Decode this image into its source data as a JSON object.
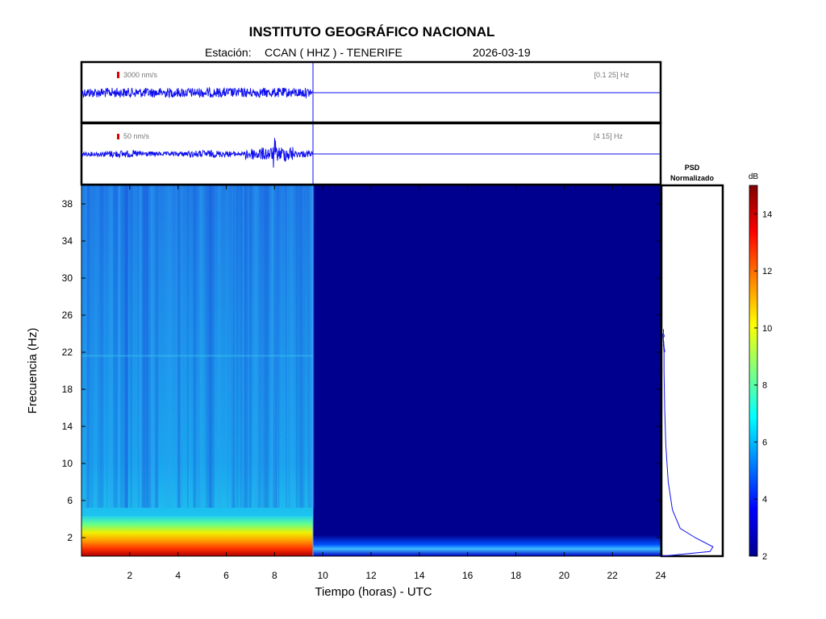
{
  "header": {
    "title": "INSTITUTO GEOGRÁFICO NACIONAL",
    "station_label": "Estación:",
    "station_value": "CCAN ( HHZ ) - TENERIFE",
    "date": "2026-03-19"
  },
  "colors": {
    "trace": "#1010ee",
    "scale_bar": "#dd0000",
    "spectrogram_background": "#00008f",
    "frame": "#000000"
  },
  "chart_data": [
    {
      "type": "line",
      "panel": "waveform-broadband",
      "scale_label": "3000 nm/s",
      "band_label": "[0.1 25] Hz",
      "x_range": [
        0,
        24
      ],
      "data_end_hour": 9.6,
      "description_flat_after_data": true
    },
    {
      "type": "line",
      "panel": "waveform-highpass",
      "scale_label": "50 nm/s",
      "band_label": "[4 15] Hz",
      "x_range": [
        0,
        24
      ],
      "data_end_hour": 9.6,
      "event_peak_hour": 8.0
    },
    {
      "type": "heatmap",
      "panel": "spectrogram",
      "xlabel": "Tiempo (horas) - UTC",
      "ylabel": "Frecuencia  (Hz)",
      "xlim": [
        0,
        24
      ],
      "ylim": [
        0,
        40
      ],
      "xticks": [
        2,
        4,
        6,
        8,
        10,
        12,
        14,
        16,
        18,
        20,
        22,
        24
      ],
      "yticks": [
        2,
        6,
        10,
        14,
        18,
        22,
        26,
        30,
        34,
        38
      ],
      "data_end_hour": 9.6
    },
    {
      "type": "line",
      "panel": "psd",
      "title_line1": "PSD",
      "title_line2": "Normalizado",
      "ylim": [
        0,
        40
      ],
      "points": [
        [
          0,
          0.0
        ],
        [
          0.5,
          0.8
        ],
        [
          1.0,
          0.85
        ],
        [
          2,
          0.55
        ],
        [
          3,
          0.3
        ],
        [
          5,
          0.17
        ],
        [
          8,
          0.1
        ],
        [
          12,
          0.06
        ],
        [
          16,
          0.04
        ],
        [
          20,
          0.03
        ],
        [
          22,
          0.03
        ],
        [
          24,
          0.01
        ]
      ]
    },
    {
      "type": "heatmap",
      "panel": "colorbar",
      "unit": "dB",
      "range": [
        2,
        15
      ],
      "ticks": [
        2,
        4,
        6,
        8,
        10,
        12,
        14
      ]
    }
  ]
}
